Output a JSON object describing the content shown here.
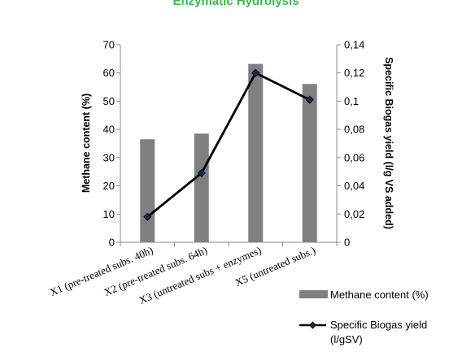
{
  "chart_data": {
    "type": "bar+line",
    "title": "Enzymatic Hydrolysis",
    "categories": [
      "X1 (pre-treated subs.  40h)",
      "X2 (pre-treated subs. 64h)",
      "X3 (untreated subs + enzymes)",
      "X5 (untreated subs.)"
    ],
    "series": [
      {
        "name": "Methane content (%)",
        "type": "bar",
        "axis": "left",
        "color": "#808080",
        "values": [
          36.5,
          38.5,
          63.2,
          56.1
        ]
      },
      {
        "name": "Specific Biogas yield (l/gSV)",
        "type": "line",
        "axis": "right",
        "color": "#000000",
        "marker": "diamond",
        "values": [
          0.018,
          0.049,
          0.12,
          0.101
        ]
      }
    ],
    "ylabel": "Methane content (%)",
    "y2label": "Specific Biogas yield (l/g VS added)",
    "ylim": [
      0,
      70
    ],
    "y2lim": [
      0,
      0.14
    ],
    "yticks": [
      "0",
      "10",
      "20",
      "30",
      "40",
      "50",
      "60",
      "70"
    ],
    "y2ticks": [
      "0",
      "0,02",
      "0,04",
      "0,06",
      "0,08",
      "0,1",
      "0,12",
      "0,14"
    ],
    "grid": false,
    "legend_position": "bottom-right",
    "legend": {
      "bar_label": "Methane content (%)",
      "line_label_1": "Specific Biogas yield",
      "line_label_2": "(l/gSV)"
    }
  }
}
